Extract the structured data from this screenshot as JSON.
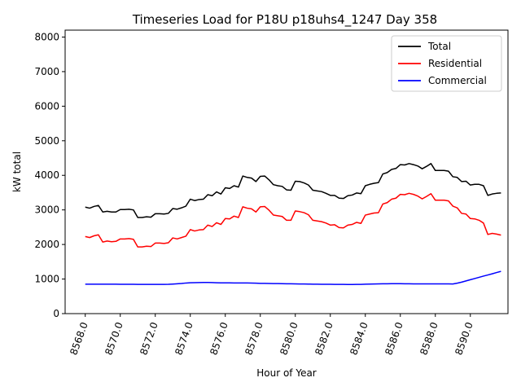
{
  "chart_data": {
    "type": "line",
    "title": "Timeseries Load for P18U p18uhs4_1247  Day 358",
    "xlabel": "Hour of Year",
    "ylabel": "kW total",
    "xlim": [
      8566.85,
      8592.15
    ],
    "ylim": [
      0,
      8200
    ],
    "xticks": [
      8568,
      8570,
      8572,
      8574,
      8576,
      8578,
      8580,
      8582,
      8584,
      8586,
      8588,
      8590
    ],
    "xtick_labels": [
      "8568.0",
      "8570.0",
      "8572.0",
      "8574.0",
      "8576.0",
      "8578.0",
      "8580.0",
      "8582.0",
      "8584.0",
      "8586.0",
      "8588.0",
      "8590.0"
    ],
    "yticks": [
      0,
      1000,
      2000,
      3000,
      4000,
      5000,
      6000,
      7000,
      8000
    ],
    "ytick_labels": [
      "0",
      "1000",
      "2000",
      "3000",
      "4000",
      "5000",
      "6000",
      "7000",
      "8000"
    ],
    "legend_position": "top-right",
    "x": [
      8568.0,
      8568.25,
      8568.5,
      8568.75,
      8569.0,
      8569.25,
      8569.5,
      8569.75,
      8570.0,
      8570.25,
      8570.5,
      8570.75,
      8571.0,
      8571.25,
      8571.5,
      8571.75,
      8572.0,
      8572.25,
      8572.5,
      8572.75,
      8573.0,
      8573.25,
      8573.5,
      8573.75,
      8574.0,
      8574.25,
      8574.5,
      8574.75,
      8575.0,
      8575.25,
      8575.5,
      8575.75,
      8576.0,
      8576.25,
      8576.5,
      8576.75,
      8577.0,
      8577.25,
      8577.5,
      8577.75,
      8578.0,
      8578.25,
      8578.5,
      8578.75,
      8579.0,
      8579.25,
      8579.5,
      8579.75,
      8580.0,
      8580.25,
      8580.5,
      8580.75,
      8581.0,
      8581.25,
      8581.5,
      8581.75,
      8582.0,
      8582.25,
      8582.5,
      8582.75,
      8583.0,
      8583.25,
      8583.5,
      8583.75,
      8584.0,
      8584.25,
      8584.5,
      8584.75,
      8585.0,
      8585.25,
      8585.5,
      8585.75,
      8586.0,
      8586.25,
      8586.5,
      8586.75,
      8587.0,
      8587.25,
      8587.5,
      8587.75,
      8588.0,
      8588.25,
      8588.5,
      8588.75,
      8589.0,
      8589.25,
      8589.5,
      8589.75,
      8590.0,
      8590.25,
      8590.5,
      8590.75,
      8591.0,
      8591.25,
      8591.5,
      8591.75
    ],
    "series": [
      {
        "name": "Total",
        "color": "#000000",
        "values": [
          3080,
          3050,
          3100,
          3130,
          2940,
          2960,
          2940,
          2940,
          3010,
          3010,
          3020,
          3000,
          2780,
          2780,
          2800,
          2790,
          2890,
          2890,
          2880,
          2900,
          3040,
          3020,
          3060,
          3110,
          3310,
          3270,
          3300,
          3310,
          3440,
          3410,
          3520,
          3460,
          3640,
          3620,
          3700,
          3660,
          3980,
          3940,
          3920,
          3820,
          3970,
          3980,
          3870,
          3730,
          3700,
          3680,
          3580,
          3570,
          3830,
          3820,
          3780,
          3720,
          3570,
          3550,
          3530,
          3480,
          3420,
          3420,
          3340,
          3330,
          3410,
          3430,
          3490,
          3470,
          3700,
          3740,
          3770,
          3790,
          4040,
          4080,
          4170,
          4200,
          4310,
          4300,
          4340,
          4310,
          4270,
          4190,
          4260,
          4340,
          4140,
          4140,
          4140,
          4120,
          3960,
          3940,
          3820,
          3830,
          3720,
          3740,
          3740,
          3700,
          3420,
          3460,
          3480,
          3490
        ]
      },
      {
        "name": "Residential",
        "color": "#ff0000",
        "values": [
          2230,
          2200,
          2250,
          2280,
          2070,
          2100,
          2080,
          2090,
          2160,
          2160,
          2170,
          2150,
          1930,
          1930,
          1950,
          1940,
          2040,
          2040,
          2030,
          2050,
          2190,
          2160,
          2200,
          2240,
          2430,
          2390,
          2420,
          2430,
          2560,
          2520,
          2630,
          2580,
          2750,
          2740,
          2820,
          2780,
          3090,
          3050,
          3030,
          2940,
          3090,
          3100,
          2990,
          2850,
          2830,
          2810,
          2700,
          2700,
          2970,
          2950,
          2920,
          2860,
          2700,
          2680,
          2660,
          2620,
          2560,
          2570,
          2490,
          2480,
          2560,
          2580,
          2640,
          2610,
          2850,
          2880,
          2910,
          2920,
          3170,
          3210,
          3310,
          3340,
          3450,
          3440,
          3480,
          3450,
          3400,
          3320,
          3390,
          3470,
          3280,
          3280,
          3280,
          3260,
          3110,
          3060,
          2900,
          2880,
          2750,
          2740,
          2700,
          2620,
          2290,
          2320,
          2300,
          2270
        ]
      },
      {
        "name": "Commercial",
        "color": "#0000ff",
        "values": [
          850,
          850,
          850,
          850,
          850,
          850,
          850,
          850,
          848,
          848,
          848,
          848,
          846,
          846,
          846,
          846,
          846,
          846,
          846,
          848,
          854,
          862,
          872,
          885,
          893,
          895,
          897,
          900,
          900,
          897,
          893,
          890,
          890,
          888,
          886,
          886,
          886,
          886,
          883,
          880,
          876,
          874,
          872,
          870,
          868,
          866,
          864,
          862,
          860,
          858,
          856,
          854,
          852,
          850,
          849,
          848,
          847,
          846,
          845,
          844,
          843,
          843,
          844,
          846,
          851,
          855,
          858,
          860,
          862,
          864,
          866,
          866,
          865,
          864,
          862,
          860,
          860,
          860,
          860,
          860,
          860,
          860,
          860,
          860,
          858,
          880,
          910,
          945,
          980,
          1015,
          1050,
          1085,
          1118,
          1152,
          1188,
          1222
        ]
      }
    ]
  }
}
